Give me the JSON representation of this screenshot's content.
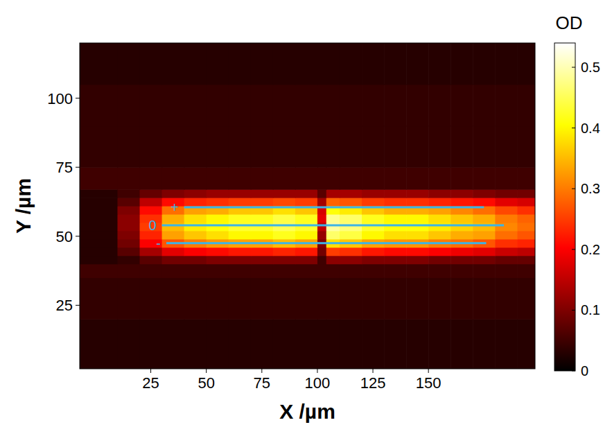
{
  "chart_data": {
    "type": "heatmap",
    "xlabel": "X /µm",
    "ylabel": "Y /µm",
    "colorbar_label": "OD",
    "xlim": [
      -7,
      198
    ],
    "ylim": [
      2,
      120
    ],
    "xticks": [
      25,
      50,
      75,
      100,
      125,
      150
    ],
    "yticks": [
      25,
      50,
      75,
      100
    ],
    "color_range": [
      0,
      0.54
    ],
    "color_ticks": [
      0,
      0.1,
      0.2,
      0.3,
      0.4,
      0.5
    ],
    "x_edges": [
      -7,
      10,
      20,
      30,
      40,
      50,
      60,
      70,
      80,
      90,
      100,
      104,
      110,
      120,
      130,
      140,
      150,
      160,
      170,
      180,
      190,
      198
    ],
    "y_edges": [
      2,
      20,
      35,
      40,
      43,
      46,
      49,
      52,
      55,
      58,
      61,
      64,
      67,
      75,
      90,
      105,
      120
    ],
    "cells": [
      [
        0.03,
        0.03,
        0.03,
        0.03,
        0.03,
        0.03,
        0.03,
        0.03,
        0.03,
        0.03,
        0.03,
        0.03,
        0.03,
        0.03,
        0.03,
        0.03,
        0.03,
        0.03,
        0.03,
        0.03,
        0.03
      ],
      [
        0.04,
        0.04,
        0.04,
        0.04,
        0.04,
        0.04,
        0.04,
        0.04,
        0.04,
        0.04,
        0.04,
        0.04,
        0.04,
        0.04,
        0.04,
        0.04,
        0.04,
        0.04,
        0.04,
        0.04,
        0.04
      ],
      [
        0.05,
        0.05,
        0.05,
        0.05,
        0.05,
        0.05,
        0.05,
        0.05,
        0.05,
        0.05,
        0.05,
        0.05,
        0.05,
        0.05,
        0.05,
        0.05,
        0.05,
        0.05,
        0.05,
        0.05,
        0.05
      ],
      [
        0.03,
        0.04,
        0.07,
        0.09,
        0.09,
        0.1,
        0.1,
        0.1,
        0.1,
        0.1,
        0.05,
        0.11,
        0.11,
        0.1,
        0.1,
        0.1,
        0.09,
        0.09,
        0.09,
        0.08,
        0.08
      ],
      [
        0.03,
        0.07,
        0.13,
        0.18,
        0.2,
        0.21,
        0.22,
        0.22,
        0.23,
        0.22,
        0.09,
        0.25,
        0.24,
        0.22,
        0.21,
        0.21,
        0.2,
        0.19,
        0.18,
        0.16,
        0.15
      ],
      [
        0.03,
        0.09,
        0.2,
        0.27,
        0.3,
        0.32,
        0.33,
        0.33,
        0.35,
        0.33,
        0.1,
        0.38,
        0.36,
        0.33,
        0.32,
        0.32,
        0.3,
        0.29,
        0.27,
        0.24,
        0.23
      ],
      [
        0.03,
        0.1,
        0.23,
        0.33,
        0.36,
        0.38,
        0.4,
        0.4,
        0.42,
        0.4,
        0.12,
        0.46,
        0.44,
        0.4,
        0.38,
        0.38,
        0.36,
        0.34,
        0.33,
        0.29,
        0.27
      ],
      [
        0.03,
        0.11,
        0.25,
        0.35,
        0.39,
        0.41,
        0.43,
        0.43,
        0.45,
        0.43,
        0.15,
        0.49,
        0.47,
        0.43,
        0.41,
        0.41,
        0.39,
        0.37,
        0.35,
        0.31,
        0.29
      ],
      [
        0.03,
        0.11,
        0.24,
        0.34,
        0.38,
        0.4,
        0.42,
        0.42,
        0.44,
        0.42,
        0.18,
        0.48,
        0.46,
        0.42,
        0.4,
        0.4,
        0.38,
        0.36,
        0.34,
        0.3,
        0.28
      ],
      [
        0.03,
        0.1,
        0.21,
        0.29,
        0.33,
        0.34,
        0.36,
        0.36,
        0.38,
        0.36,
        0.17,
        0.41,
        0.39,
        0.36,
        0.34,
        0.34,
        0.33,
        0.31,
        0.29,
        0.26,
        0.24
      ],
      [
        0.03,
        0.07,
        0.15,
        0.21,
        0.23,
        0.24,
        0.25,
        0.25,
        0.26,
        0.25,
        0.13,
        0.28,
        0.27,
        0.25,
        0.24,
        0.24,
        0.23,
        0.22,
        0.21,
        0.18,
        0.17
      ],
      [
        0.03,
        0.05,
        0.08,
        0.1,
        0.11,
        0.12,
        0.12,
        0.12,
        0.12,
        0.12,
        0.07,
        0.13,
        0.13,
        0.12,
        0.12,
        0.12,
        0.11,
        0.11,
        0.1,
        0.09,
        0.09
      ],
      [
        0.05,
        0.05,
        0.05,
        0.05,
        0.05,
        0.05,
        0.05,
        0.05,
        0.05,
        0.05,
        0.05,
        0.05,
        0.05,
        0.05,
        0.05,
        0.05,
        0.05,
        0.05,
        0.05,
        0.05,
        0.05
      ],
      [
        0.04,
        0.04,
        0.04,
        0.04,
        0.04,
        0.04,
        0.04,
        0.04,
        0.04,
        0.04,
        0.04,
        0.04,
        0.04,
        0.04,
        0.04,
        0.04,
        0.04,
        0.04,
        0.04,
        0.04,
        0.04
      ],
      [
        0.04,
        0.04,
        0.04,
        0.04,
        0.04,
        0.04,
        0.04,
        0.04,
        0.04,
        0.04,
        0.04,
        0.04,
        0.04,
        0.04,
        0.04,
        0.04,
        0.04,
        0.04,
        0.04,
        0.04,
        0.04
      ],
      [
        0.03,
        0.03,
        0.03,
        0.03,
        0.03,
        0.03,
        0.03,
        0.03,
        0.03,
        0.03,
        0.03,
        0.03,
        0.03,
        0.03,
        0.03,
        0.03,
        0.03,
        0.03,
        0.03,
        0.03,
        0.03
      ]
    ],
    "annotations": [
      {
        "text": "+",
        "y": 60.5,
        "x": [
          40,
          175
        ]
      },
      {
        "text": "0",
        "y": 54,
        "x": [
          30,
          184
        ]
      },
      {
        "text": "-",
        "y": 47.5,
        "x": [
          32,
          176
        ]
      }
    ]
  }
}
